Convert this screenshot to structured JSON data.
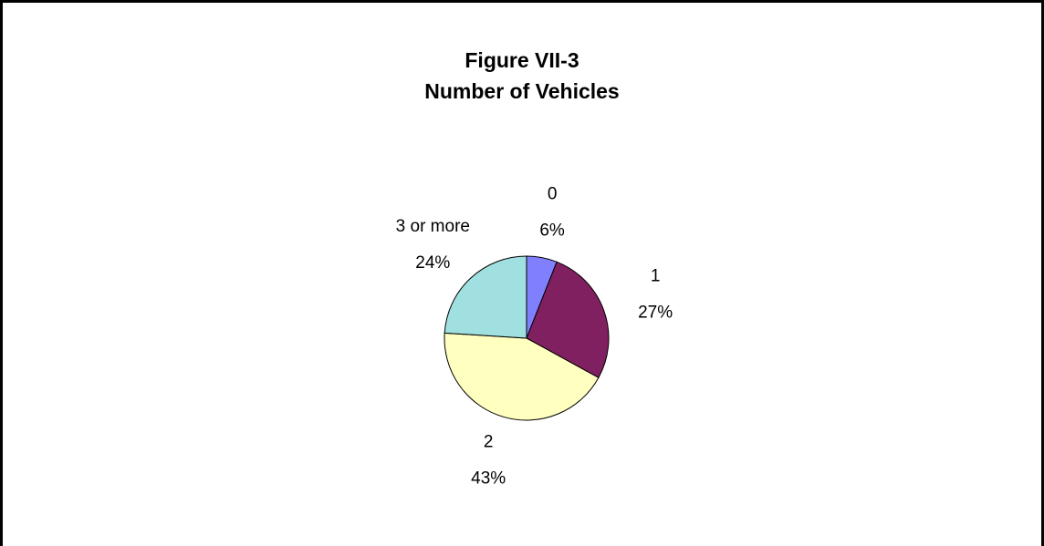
{
  "chart_data": {
    "type": "pie",
    "title": "Figure VII-3",
    "subtitle": "Number of Vehicles",
    "categories": [
      "0",
      "1",
      "2",
      "3 or more"
    ],
    "values": [
      6,
      27,
      43,
      24
    ],
    "value_labels": [
      "6%",
      "27%",
      "43%",
      "24%"
    ],
    "colors": [
      "#8080ff",
      "#802060",
      "#ffffc0",
      "#a0e0e0"
    ]
  }
}
